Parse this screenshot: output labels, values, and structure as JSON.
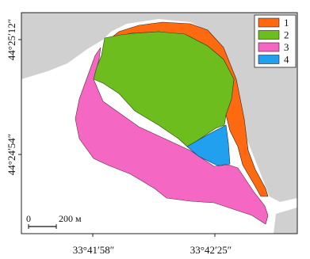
{
  "map": {
    "lat_labels": [
      "44°25′12″",
      "44°24′54″"
    ],
    "lon_labels": [
      "33°41′58″",
      "33°42′25″"
    ],
    "scale": {
      "zero": "0",
      "distance": "200 м"
    },
    "legend": [
      {
        "label": "1",
        "color": "#ff6a10"
      },
      {
        "label": "2",
        "color": "#6ebd1e"
      },
      {
        "label": "3",
        "color": "#f468c4"
      },
      {
        "label": "4",
        "color": "#22a0f0"
      }
    ],
    "colors": {
      "land": "#d0d0d0",
      "sea": "#ffffff",
      "frame": "#222222"
    }
  }
}
